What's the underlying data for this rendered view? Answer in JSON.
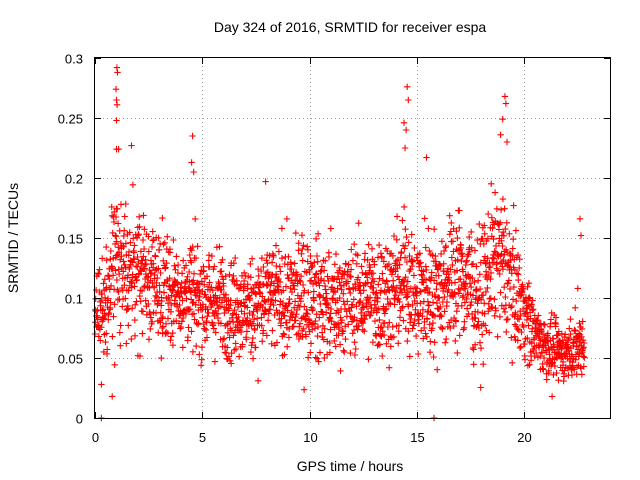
{
  "chart_data": {
    "type": "scatter",
    "title": "Day 324 of 2016, SRMTID for receiver espa",
    "xlabel": "GPS time / hours",
    "ylabel": "SRMTID / TECUs",
    "xlim": [
      0,
      24
    ],
    "ylim": [
      0,
      0.3
    ],
    "xticks": [
      0,
      5,
      10,
      15,
      20
    ],
    "xtick_labels": [
      "0",
      "5",
      "10",
      "15",
      "20"
    ],
    "yticks": [
      0,
      0.05,
      0.1,
      0.15,
      0.2,
      0.25,
      0.3
    ],
    "ytick_labels": [
      "0",
      "0.05",
      "0.1",
      "0.15",
      "0.2",
      "0.25",
      "0.3"
    ],
    "grid": true,
    "marker": "+",
    "color": "#ff0000",
    "series": [
      {
        "name": "SRMTID",
        "profile": {
          "x": [
            0,
            0.5,
            1,
            1.5,
            2,
            3,
            4,
            5,
            6,
            7,
            8,
            9,
            10,
            11,
            12,
            13,
            14,
            14.5,
            15,
            16,
            17,
            18,
            18.5,
            19,
            20,
            20.5,
            21,
            21.5,
            22,
            22.5,
            22.8
          ],
          "center": [
            0.085,
            0.09,
            0.13,
            0.11,
            0.12,
            0.11,
            0.105,
            0.1,
            0.095,
            0.09,
            0.1,
            0.1,
            0.1,
            0.095,
            0.1,
            0.1,
            0.105,
            0.12,
            0.1,
            0.11,
            0.12,
            0.1,
            0.13,
            0.13,
            0.09,
            0.07,
            0.06,
            0.055,
            0.055,
            0.06,
            0.065
          ],
          "spread": [
            0.03,
            0.04,
            0.06,
            0.05,
            0.045,
            0.04,
            0.04,
            0.04,
            0.04,
            0.035,
            0.04,
            0.04,
            0.045,
            0.04,
            0.04,
            0.045,
            0.045,
            0.05,
            0.045,
            0.045,
            0.05,
            0.045,
            0.055,
            0.05,
            0.035,
            0.025,
            0.02,
            0.02,
            0.02,
            0.025,
            0.025
          ]
        },
        "peaks": [
          {
            "x": 1.02,
            "y": 0.292
          },
          {
            "x": 1.05,
            "y": 0.288
          },
          {
            "x": 0.98,
            "y": 0.274
          },
          {
            "x": 1.0,
            "y": 0.265
          },
          {
            "x": 1.03,
            "y": 0.261
          },
          {
            "x": 1.0,
            "y": 0.248
          },
          {
            "x": 1.0,
            "y": 0.224
          },
          {
            "x": 1.1,
            "y": 0.224
          },
          {
            "x": 1.7,
            "y": 0.227
          },
          {
            "x": 4.55,
            "y": 0.235
          },
          {
            "x": 4.5,
            "y": 0.213
          },
          {
            "x": 4.6,
            "y": 0.205
          },
          {
            "x": 7.95,
            "y": 0.197
          },
          {
            "x": 14.55,
            "y": 0.276
          },
          {
            "x": 14.6,
            "y": 0.265
          },
          {
            "x": 14.4,
            "y": 0.246
          },
          {
            "x": 14.5,
            "y": 0.24
          },
          {
            "x": 14.45,
            "y": 0.225
          },
          {
            "x": 15.45,
            "y": 0.217
          },
          {
            "x": 19.1,
            "y": 0.268
          },
          {
            "x": 19.15,
            "y": 0.262
          },
          {
            "x": 19.0,
            "y": 0.249
          },
          {
            "x": 18.9,
            "y": 0.236
          },
          {
            "x": 19.2,
            "y": 0.23
          },
          {
            "x": 22.6,
            "y": 0.166
          },
          {
            "x": 22.65,
            "y": 0.152
          },
          {
            "x": 22.5,
            "y": 0.108
          }
        ],
        "lows": [
          {
            "x": 0.3,
            "y": 0.0
          },
          {
            "x": 0.3,
            "y": 0.028
          },
          {
            "x": 0.8,
            "y": 0.018
          },
          {
            "x": 7.6,
            "y": 0.031
          },
          {
            "x": 15.8,
            "y": 0.0
          },
          {
            "x": 21.3,
            "y": 0.018
          },
          {
            "x": 21.05,
            "y": 0.032
          }
        ]
      }
    ]
  }
}
